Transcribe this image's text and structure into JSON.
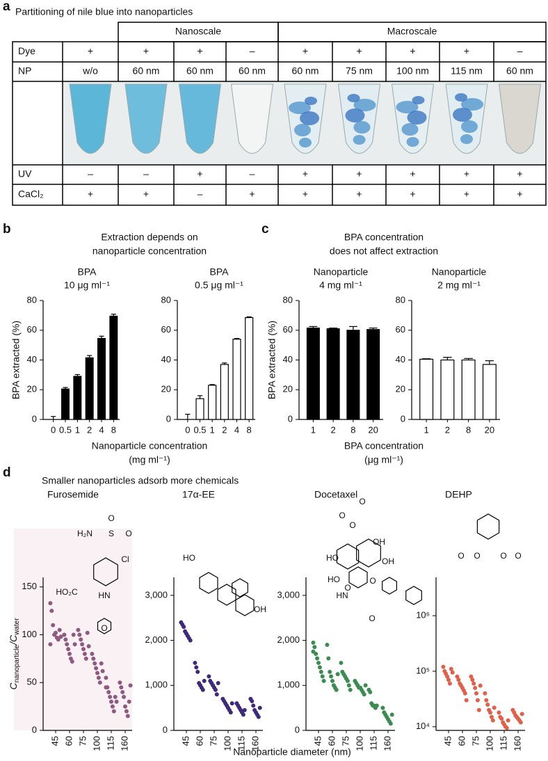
{
  "panels": {
    "a": {
      "label": "a",
      "title": "Partitioning of nile blue into nanoparticles",
      "groups": [
        "Nanoscale",
        "Macroscale"
      ],
      "rows": [
        {
          "label": "Dye",
          "cells": [
            "+",
            "+",
            "+",
            "–",
            "+",
            "+",
            "+",
            "+",
            "–"
          ]
        },
        {
          "label": "NP",
          "cells": [
            "w/o",
            "60 nm",
            "60 nm",
            "60 nm",
            "60 nm",
            "75 nm",
            "100 nm",
            "115 nm",
            "60 nm"
          ]
        },
        {
          "label": "UV",
          "cells": [
            "–",
            "–",
            "+",
            "–",
            "+",
            "+",
            "+",
            "+",
            "+"
          ]
        },
        {
          "label": "CaCl₂",
          "cells": [
            "+",
            "+",
            "–",
            "+",
            "+",
            "+",
            "+",
            "+",
            "+"
          ]
        }
      ]
    },
    "b": {
      "label": "b",
      "title_lines": [
        "Extraction depends on",
        "nanoparticle concentration"
      ],
      "xlabel_lines": [
        "Nanoparticle concentration",
        "(mg ml⁻¹)"
      ]
    },
    "c": {
      "label": "c",
      "title_lines": [
        "BPA concentration",
        "does not affect extraction"
      ],
      "xlabel_lines": [
        "BPA concentration",
        "(μg ml⁻¹)"
      ]
    },
    "d": {
      "label": "d",
      "title": "Smaller nanoparticles adsorb more chemicals",
      "xlabel": "Nanoparticle diameter (nm)"
    }
  },
  "chart_data": [
    {
      "type": "bar",
      "subtitle_lines": [
        "BPA",
        "10 μg ml⁻¹"
      ],
      "ylabel": "BPA extracted (%)",
      "categories": [
        "0",
        "0.5",
        "1",
        "2",
        "4",
        "8"
      ],
      "values": [
        0,
        20.5,
        29,
        41.5,
        54.5,
        69.5
      ],
      "errors": [
        2,
        1,
        1.2,
        1.5,
        1.5,
        1.3
      ],
      "color": "#000000",
      "edgecolor": "#000000",
      "ylim": [
        0,
        80
      ],
      "yticks": [
        0,
        20,
        40,
        60,
        80
      ]
    },
    {
      "type": "bar",
      "subtitle_lines": [
        "BPA",
        "0.5 μg ml⁻¹"
      ],
      "categories": [
        "0",
        "0.5",
        "1",
        "2",
        "4",
        "8"
      ],
      "values": [
        0,
        14,
        23,
        37,
        54,
        68.5
      ],
      "errors": [
        3.5,
        2,
        0.5,
        1,
        0.5,
        0.5
      ],
      "color": "#ffffff",
      "edgecolor": "#000000",
      "ylim": [
        0,
        80
      ],
      "yticks": [
        0,
        20,
        40,
        60,
        80
      ]
    },
    {
      "type": "bar",
      "subtitle_lines": [
        "Nanoparticle",
        "4 mg ml⁻¹"
      ],
      "ylabel": "BPA extracted (%)",
      "categories": [
        "1",
        "2",
        "8",
        "20"
      ],
      "values": [
        61.5,
        61,
        60,
        60.5
      ],
      "errors": [
        1,
        0.5,
        2.5,
        1
      ],
      "color": "#000000",
      "edgecolor": "#000000",
      "ylim": [
        0,
        80
      ],
      "yticks": [
        0,
        20,
        40,
        60,
        80
      ]
    },
    {
      "type": "bar",
      "subtitle_lines": [
        "Nanoparticle",
        "2 mg ml⁻¹"
      ],
      "categories": [
        "1",
        "2",
        "8",
        "20"
      ],
      "values": [
        40.5,
        40,
        40,
        37
      ],
      "errors": [
        0.3,
        1.8,
        1,
        2.5
      ],
      "color": "#ffffff",
      "edgecolor": "#000000",
      "ylim": [
        0,
        80
      ],
      "yticks": [
        0,
        20,
        40,
        60,
        80
      ]
    },
    {
      "type": "scatter",
      "title": "Furosemide",
      "ylabel_parts": [
        "C",
        "nanoparticle",
        "/C",
        "water"
      ],
      "categories": [
        "45",
        "60",
        "75",
        "100",
        "115",
        "160"
      ],
      "values": [
        [
          133,
          125,
          110,
          100,
          102,
          97,
          95,
          105,
          98,
          90
        ],
        [
          100,
          95,
          90,
          85,
          80,
          75,
          72,
          100,
          90
        ],
        [
          105,
          100,
          95,
          90,
          85,
          80,
          75,
          102,
          88
        ],
        [
          80,
          75,
          70,
          65,
          60,
          55,
          50,
          70,
          62
        ],
        [
          55,
          45,
          40,
          35,
          30,
          25,
          20,
          35,
          30,
          45
        ],
        [
          50,
          45,
          40,
          35,
          25,
          20,
          15,
          30,
          47
        ]
      ],
      "color": "#8e5a80",
      "background": "#f9f1f3",
      "ylim": [
        0,
        160
      ],
      "yticks": [
        0,
        50,
        100,
        150
      ],
      "structure_labels": [
        "O",
        "H₂N",
        "S",
        "O",
        "Cl",
        "HO₂C",
        "HN",
        "O"
      ]
    },
    {
      "type": "scatter",
      "title": "17α-EE",
      "categories": [
        "45",
        "60",
        "75",
        "100",
        "115",
        "160"
      ],
      "values": [
        [
          2400,
          2350,
          2300,
          2200,
          2150,
          2100,
          2050,
          2000
        ],
        [
          1500,
          1400,
          1300,
          1050,
          1000,
          950,
          900,
          1100
        ],
        [
          1200,
          1100,
          1050,
          1000,
          950,
          900,
          800,
          1050
        ],
        [
          700,
          650,
          600,
          550,
          500,
          450,
          400,
          600
        ],
        [
          600,
          550,
          500,
          450,
          400,
          350,
          450
        ],
        [
          700,
          650,
          550,
          450,
          400,
          350,
          300,
          500
        ]
      ],
      "color": "#3d2a7a",
      "ylim": [
        0,
        3400
      ],
      "yticks": [
        0,
        {
          "value": 1000,
          "label": "1,000"
        },
        {
          "value": 2000,
          "label": "2,000"
        },
        {
          "value": 3000,
          "label": "3,000"
        }
      ],
      "structure_labels": [
        "HO",
        "OH"
      ]
    },
    {
      "type": "scatter",
      "title": "Docetaxel",
      "categories": [
        "45",
        "60",
        "75",
        "100",
        "115",
        "160"
      ],
      "values": [
        [
          1950,
          1850,
          1700,
          1600,
          1500,
          1400,
          1300,
          1200,
          1100,
          1750
        ],
        [
          1900,
          1600,
          1300,
          1200,
          1100,
          1000,
          950,
          900,
          1250
        ],
        [
          1500,
          1300,
          1250,
          1200,
          1150,
          1100,
          1000,
          900
        ],
        [
          1100,
          1050,
          1000,
          950,
          950,
          900,
          850,
          800,
          1000
        ],
        [
          900,
          850,
          600,
          550,
          550,
          500,
          550
        ],
        [
          500,
          400,
          350,
          300,
          250,
          200,
          150,
          350
        ]
      ],
      "color": "#3a8c50",
      "ylim": [
        0,
        3400
      ],
      "yticks": [
        0,
        {
          "value": 1000,
          "label": "1,000"
        },
        {
          "value": 2000,
          "label": "2,000"
        },
        {
          "value": 3000,
          "label": "3,000"
        }
      ],
      "structure_labels": [
        "O",
        "O",
        "O",
        "OH",
        "HO",
        "HO",
        "O",
        "O",
        "OH",
        "HN",
        "O"
      ]
    },
    {
      "type": "scatter",
      "title": "DEHP",
      "log": true,
      "categories": [
        "45",
        "60",
        "75",
        "100",
        "115",
        "160"
      ],
      "values": [
        [
          120000,
          100000,
          90000,
          80000,
          70000,
          60000,
          110000,
          95000
        ],
        [
          80000,
          70000,
          60000,
          55000,
          50000,
          45000,
          40000,
          30000
        ],
        [
          80000,
          70000,
          60000,
          50000,
          40000,
          30000,
          20000,
          55000
        ],
        [
          40000,
          30000,
          25000,
          20000,
          18000,
          15000,
          13000,
          22000
        ],
        [
          18000,
          15000,
          14000,
          12000,
          11000,
          10000,
          9500,
          13000
        ],
        [
          20000,
          18000,
          16000,
          15000,
          14000,
          13000,
          12000,
          17000
        ]
      ],
      "color": "#e0604a",
      "ylim": [
        8600,
        4900000
      ],
      "yticks": [
        {
          "value": 10000,
          "label": "10⁴"
        },
        {
          "value": 100000,
          "label": "10⁵"
        },
        {
          "value": 1000000,
          "label": "10⁶"
        }
      ],
      "structure_labels": [
        "O",
        "O",
        "O",
        "O"
      ]
    }
  ]
}
